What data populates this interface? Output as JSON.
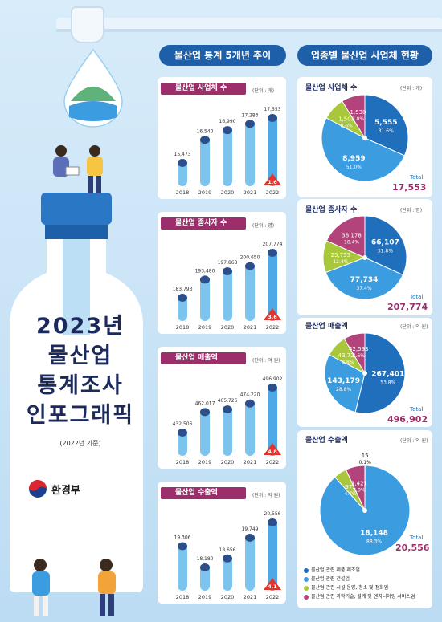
{
  "header": {
    "left_title": "물산업 통계 5개년 추이",
    "right_title": "업종별 물산업 사업체 현황"
  },
  "poster": {
    "title_lines": [
      "2023년",
      "물산업",
      "통계조사",
      "인포그래픽"
    ],
    "basis": "(2022년 기준)",
    "ministry": "환경부"
  },
  "colors": {
    "navy": "#1d5fa8",
    "magenta": "#9c2f6b",
    "bar": "#7cc4ee",
    "red_badge": "#e0342c",
    "pie_dark": "#1f6fbd",
    "pie_light": "#3c9ce0",
    "pie_green": "#a8c73a",
    "pie_pink": "#b3447b"
  },
  "chart_data": [
    {
      "type": "bar",
      "title": "물산업 사업체 수",
      "unit": "(단위 : 개)",
      "categories": [
        "2018",
        "2019",
        "2020",
        "2021",
        "2022"
      ],
      "values": [
        15473,
        16540,
        16990,
        17283,
        17553
      ],
      "labels": [
        "15,473",
        "16,540",
        "16,990",
        "17,283",
        "17,553"
      ],
      "growth": "1.6",
      "ylim": [
        0,
        17553
      ]
    },
    {
      "type": "bar",
      "title": "물산업 종사자 수",
      "unit": "(단위 : 명)",
      "categories": [
        "2018",
        "2019",
        "2020",
        "2021",
        "2022"
      ],
      "values": [
        183793,
        193480,
        197863,
        200650,
        207774
      ],
      "labels": [
        "183,793",
        "193,480",
        "197,863",
        "200,650",
        "207,774"
      ],
      "growth": "3.6",
      "ylim": [
        0,
        207774
      ]
    },
    {
      "type": "bar",
      "title": "물산업 매출액",
      "unit": "(단위 : 억 원)",
      "categories": [
        "2018",
        "2019",
        "2020",
        "2021",
        "2022"
      ],
      "values": [
        432506,
        462017,
        465726,
        474220,
        496902
      ],
      "labels": [
        "432,506",
        "462,017",
        "465,726",
        "474,220",
        "496,902"
      ],
      "growth": "4.8",
      "ylim": [
        0,
        496902
      ]
    },
    {
      "type": "bar",
      "title": "물산업 수출액",
      "unit": "(단위 : 억 원)",
      "categories": [
        "2018",
        "2019",
        "2020",
        "2021",
        "2022"
      ],
      "values": [
        19306,
        18180,
        18656,
        19749,
        20556
      ],
      "labels": [
        "19,306",
        "18,180",
        "18,656",
        "19,749",
        "20,556"
      ],
      "growth": "4.1",
      "ylim": [
        0,
        20556
      ]
    },
    {
      "type": "pie",
      "title": "물산업 사업체 수",
      "unit": "(단위 : 개)",
      "total_label": "Total",
      "total": "17,553",
      "slices": [
        {
          "value": 5555,
          "label": "5,555",
          "pct": "31.6%",
          "color": "#1f6fbd"
        },
        {
          "value": 8959,
          "label": "8,959",
          "pct": "51.0%",
          "color": "#3c9ce0"
        },
        {
          "value": 1501,
          "label": "1,501",
          "pct": "8.6%",
          "color": "#a8c73a"
        },
        {
          "value": 1538,
          "label": "1,538",
          "pct": "8.8%",
          "color": "#b3447b"
        }
      ]
    },
    {
      "type": "pie",
      "title": "물산업 종사자 수",
      "unit": "(단위 : 명)",
      "total_label": "Total",
      "total": "207,774",
      "slices": [
        {
          "value": 66107,
          "label": "66,107",
          "pct": "31.8%",
          "color": "#1f6fbd"
        },
        {
          "value": 77734,
          "label": "77,734",
          "pct": "37.4%",
          "color": "#3c9ce0"
        },
        {
          "value": 25755,
          "label": "25,755",
          "pct": "12.4%",
          "color": "#a8c73a"
        },
        {
          "value": 38178,
          "label": "38,178",
          "pct": "18.4%",
          "color": "#b3447b"
        }
      ]
    },
    {
      "type": "pie",
      "title": "물산업 매출액",
      "unit": "(단위 : 억 원)",
      "total_label": "Total",
      "total": "496,902",
      "slices": [
        {
          "value": 267401,
          "label": "267,401",
          "pct": "53.8%",
          "color": "#1f6fbd"
        },
        {
          "value": 143179,
          "label": "143,179",
          "pct": "28.8%",
          "color": "#3c9ce0"
        },
        {
          "value": 43728,
          "label": "43,728",
          "pct": "8.8%",
          "color": "#a8c73a"
        },
        {
          "value": 42593,
          "label": "42,593",
          "pct": "8.6%",
          "color": "#b3447b"
        }
      ]
    },
    {
      "type": "pie",
      "title": "물산업 수출액",
      "unit": "(단위 : 억 원)",
      "total_label": "Total",
      "total": "20,556",
      "slices": [
        {
          "value": 15,
          "label": "15",
          "pct": "0.1%",
          "color": "#1f6fbd"
        },
        {
          "value": 18148,
          "label": "18,148",
          "pct": "88.3%",
          "color": "#3c9ce0"
        },
        {
          "value": 972,
          "label": "972",
          "pct": "4.7%",
          "color": "#a8c73a"
        },
        {
          "value": 1421,
          "label": "1,421",
          "pct": "6.9%",
          "color": "#b3447b"
        }
      ]
    }
  ],
  "legend": [
    {
      "label": "물산업 관련 제품 제조업",
      "color": "#1f6fbd"
    },
    {
      "label": "물산업 관련 건설업",
      "color": "#3c9ce0"
    },
    {
      "label": "물산업 관련 시설 운영, 청소 및 정화업",
      "color": "#a8c73a"
    },
    {
      "label": "물산업 관련 과학기술, 설계 및 엔지니어링 서비스업",
      "color": "#b3447b"
    }
  ]
}
